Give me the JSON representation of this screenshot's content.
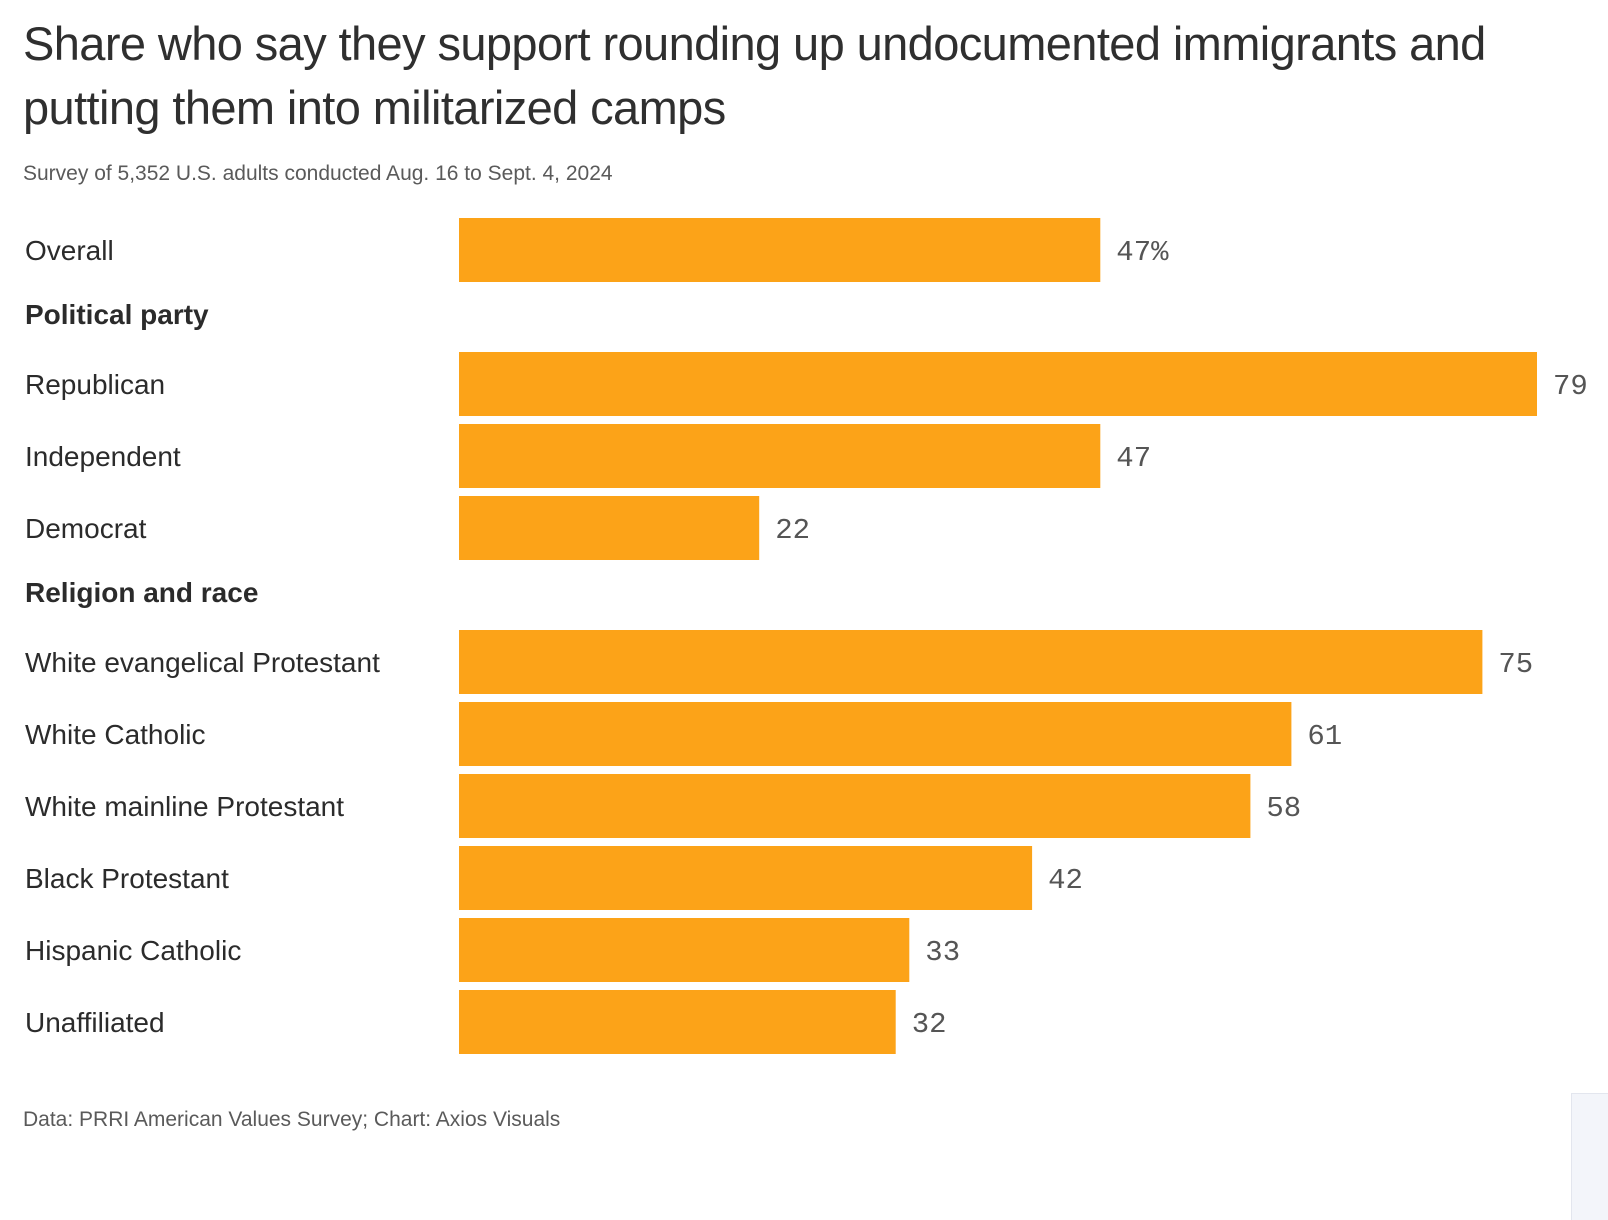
{
  "chart_data": {
    "type": "bar",
    "orientation": "horizontal",
    "title": "Share who say they support rounding up undocumented immigrants and putting them into militarized camps",
    "subtitle": "Survey of 5,352 U.S. adults conducted Aug. 16 to Sept. 4, 2024",
    "source": "Data: PRRI American Values Survey; Chart: Axios Visuals",
    "xlim": [
      0,
      79
    ],
    "bar_color": "#fca318",
    "groups": [
      {
        "heading": "",
        "rows": [
          {
            "label": "Overall",
            "value": 47,
            "value_label": "47%"
          }
        ]
      },
      {
        "heading": "Political party",
        "rows": [
          {
            "label": "Republican",
            "value": 79,
            "value_label": "79"
          },
          {
            "label": "Independent",
            "value": 47,
            "value_label": "47"
          },
          {
            "label": "Democrat",
            "value": 22,
            "value_label": "22"
          }
        ]
      },
      {
        "heading": "Religion and race",
        "rows": [
          {
            "label": "White evangelical Protestant",
            "value": 75,
            "value_label": "75"
          },
          {
            "label": "White Catholic",
            "value": 61,
            "value_label": "61"
          },
          {
            "label": "White mainline Protestant",
            "value": 58,
            "value_label": "58"
          },
          {
            "label": "Black Protestant",
            "value": 42,
            "value_label": "42"
          },
          {
            "label": "Hispanic Catholic",
            "value": 33,
            "value_label": "33"
          },
          {
            "label": "Unaffiliated",
            "value": 32,
            "value_label": "32"
          }
        ]
      }
    ]
  }
}
